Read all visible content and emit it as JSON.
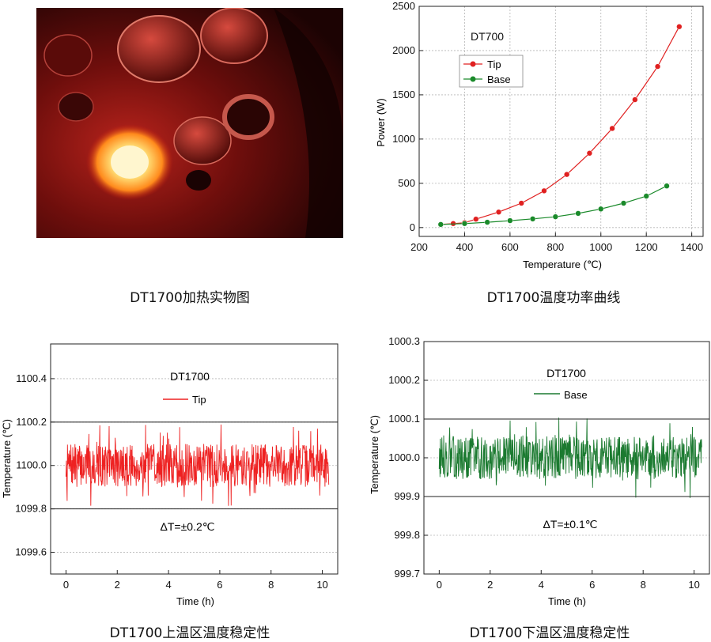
{
  "panels": {
    "photo": {
      "caption": "DT1700加热实物图"
    },
    "power": {
      "caption": "DT1700温度功率曲线"
    },
    "upper": {
      "caption": "DT1700上温区温度稳定性"
    },
    "lower": {
      "caption": "DT1700下温区温度稳定性"
    }
  },
  "chart_data": [
    {
      "id": "power",
      "type": "line",
      "title": "DT700",
      "xlabel": "Temperature (℃)",
      "ylabel": "Power (W)",
      "xlim": [
        200,
        1450
      ],
      "ylim": [
        -100,
        2500
      ],
      "xticks": [
        200,
        400,
        600,
        800,
        1000,
        1200,
        1400
      ],
      "yticks": [
        0,
        500,
        1000,
        1500,
        2000,
        2500
      ],
      "grid": true,
      "legend": "top-left",
      "series": [
        {
          "name": "Tip",
          "color": "#e02020",
          "x": [
            295,
            350,
            400,
            450,
            550,
            650,
            750,
            850,
            950,
            1050,
            1150,
            1250,
            1345
          ],
          "y": [
            35,
            45,
            55,
            95,
            175,
            275,
            415,
            600,
            840,
            1120,
            1445,
            1820,
            2270
          ]
        },
        {
          "name": "Base",
          "color": "#1a8a2a",
          "x": [
            295,
            400,
            500,
            600,
            700,
            800,
            900,
            1000,
            1100,
            1200,
            1290
          ],
          "y": [
            35,
            45,
            60,
            78,
            98,
            122,
            160,
            210,
            275,
            355,
            470
          ]
        }
      ]
    },
    {
      "id": "upper",
      "type": "line",
      "title": "DT1700",
      "xlabel": "Time (h)",
      "ylabel": "Temperature (℃)",
      "xlim": [
        -0.6,
        10.6
      ],
      "ylim": [
        1099.5,
        1100.56
      ],
      "xticks": [
        0,
        2,
        4,
        6,
        8,
        10
      ],
      "yticks": [
        1099.6,
        1099.8,
        1100.0,
        1100.2,
        1100.4
      ],
      "ytick_labels": [
        "1099.6",
        "1099.8",
        "1100.0",
        "1100.2",
        "1100.4"
      ],
      "grid": true,
      "legend": "top-center",
      "ref_lines": [
        1099.8,
        1100.2
      ],
      "annotation": "ΔT=±0.2℃",
      "series": [
        {
          "name": "Tip",
          "color": "#ee2222",
          "x_range": [
            0,
            10.25
          ],
          "center": 1100.0,
          "amplitude": 0.18,
          "seed": 7
        }
      ]
    },
    {
      "id": "lower",
      "type": "line",
      "title": "DT1700",
      "xlabel": "Time (h)",
      "ylabel": "Temperature (℃)",
      "xlim": [
        -0.6,
        10.6
      ],
      "ylim": [
        999.7,
        1000.3
      ],
      "xticks": [
        0,
        2,
        4,
        6,
        8,
        10
      ],
      "yticks": [
        999.7,
        999.8,
        999.9,
        1000.0,
        1000.1,
        1000.2,
        1000.3
      ],
      "ytick_labels": [
        "999.7",
        "999.8",
        "999.9",
        "1000.0",
        "1000.1",
        "1000.2",
        "1000.3"
      ],
      "grid": true,
      "legend": "top-center",
      "ref_lines": [
        999.9,
        1000.1
      ],
      "annotation": "ΔT=±0.1℃",
      "series": [
        {
          "name": "Base",
          "color": "#1b7a30",
          "x_range": [
            0,
            10.3
          ],
          "center": 1000.0,
          "amplitude": 0.1,
          "seed": 13
        }
      ]
    }
  ]
}
